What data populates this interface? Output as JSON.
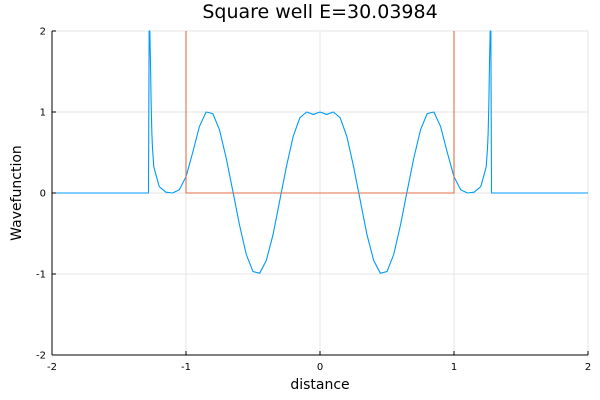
{
  "chart_data": {
    "type": "line",
    "title": "Square well E=30.03984",
    "xlabel": "distance",
    "ylabel": "Wavefunction",
    "xlim": [
      -2,
      2
    ],
    "ylim": [
      -2,
      2
    ],
    "x_ticks": [
      -2,
      -1,
      0,
      1,
      2
    ],
    "y_ticks": [
      -2,
      -1,
      0,
      1,
      2
    ],
    "x_tick_labels": [
      "-2",
      "-1",
      "0",
      "1",
      "2"
    ],
    "y_tick_labels": [
      "-2",
      "-1",
      "0",
      "1",
      "2"
    ],
    "grid": true,
    "series": [
      {
        "color": "#009AF9",
        "x": [
          -2.0,
          -1.3,
          -1.28,
          -1.275,
          -1.27,
          -1.265,
          -1.26,
          -1.255,
          -1.25,
          -1.24,
          -1.2,
          -1.15,
          -1.1,
          -1.05,
          -1.0,
          -0.95,
          -0.9,
          -0.85,
          -0.8,
          -0.75,
          -0.7,
          -0.65,
          -0.6,
          -0.55,
          -0.5,
          -0.45,
          -0.4,
          -0.35,
          -0.3,
          -0.25,
          -0.2,
          -0.15,
          -0.1,
          -0.05,
          0.0,
          0.05,
          0.1,
          0.15,
          0.2,
          0.25,
          0.3,
          0.35,
          0.4,
          0.45,
          0.5,
          0.55,
          0.6,
          0.65,
          0.7,
          0.75,
          0.8,
          0.85,
          0.9,
          0.95,
          1.0,
          1.05,
          1.1,
          1.15,
          1.2,
          1.24,
          1.25,
          1.255,
          1.26,
          1.265,
          1.27,
          1.275,
          1.28,
          1.3,
          2.0
        ],
        "y": [
          0.0,
          0.0,
          0.0,
          2.0,
          2.0,
          1.6,
          1.1,
          0.75,
          0.55,
          0.32,
          0.08,
          0.01,
          0.0,
          0.04,
          0.2,
          0.5,
          0.82,
          1.0,
          0.98,
          0.78,
          0.43,
          0.02,
          -0.4,
          -0.76,
          -0.97,
          -0.99,
          -0.83,
          -0.51,
          -0.09,
          0.33,
          0.7,
          0.93,
          1.0,
          0.97,
          1.0,
          0.97,
          1.0,
          0.93,
          0.7,
          0.33,
          -0.09,
          -0.51,
          -0.83,
          -0.99,
          -0.97,
          -0.76,
          -0.4,
          0.02,
          0.43,
          0.78,
          0.98,
          1.0,
          0.82,
          0.5,
          0.2,
          0.04,
          0.0,
          0.01,
          0.08,
          0.32,
          0.55,
          0.75,
          1.1,
          1.6,
          2.0,
          2.0,
          0.0,
          0.0,
          0.0
        ]
      },
      {
        "color": "#E26F46",
        "x": [
          -1.0,
          -1.0,
          1.0,
          1.0
        ],
        "y": [
          2.0,
          0.0,
          0.0,
          2.0
        ]
      }
    ]
  }
}
